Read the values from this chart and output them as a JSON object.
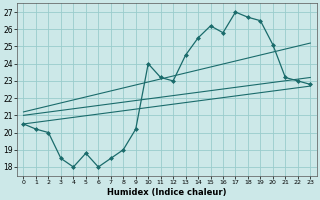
{
  "xlabel": "Humidex (Indice chaleur)",
  "bg_color": "#cce8e8",
  "grid_color": "#99cccc",
  "line_color": "#1a6b6b",
  "xlim": [
    -0.5,
    23.5
  ],
  "ylim": [
    17.5,
    27.5
  ],
  "xticks": [
    0,
    1,
    2,
    3,
    4,
    5,
    6,
    7,
    8,
    9,
    10,
    11,
    12,
    13,
    14,
    15,
    16,
    17,
    18,
    19,
    20,
    21,
    22,
    23
  ],
  "yticks": [
    18,
    19,
    20,
    21,
    22,
    23,
    24,
    25,
    26,
    27
  ],
  "humidex_x": [
    0,
    1,
    2,
    3,
    4,
    5,
    6,
    7,
    8,
    9,
    10,
    11,
    12,
    13,
    14,
    15,
    16,
    17,
    18,
    19,
    20,
    21,
    22,
    23
  ],
  "humidex_y": [
    20.5,
    20.2,
    20.0,
    18.5,
    18.0,
    18.8,
    18.0,
    18.5,
    19.0,
    20.2,
    24.0,
    23.2,
    23.0,
    24.5,
    25.5,
    26.2,
    25.8,
    27.0,
    26.7,
    26.5,
    25.1,
    23.2,
    23.0,
    22.8
  ],
  "trend1_x": [
    0,
    23
  ],
  "trend1_y": [
    20.5,
    22.7
  ],
  "trend2_x": [
    0,
    23
  ],
  "trend2_y": [
    21.0,
    23.2
  ],
  "trend3_x": [
    0,
    23
  ],
  "trend3_y": [
    21.2,
    25.2
  ]
}
